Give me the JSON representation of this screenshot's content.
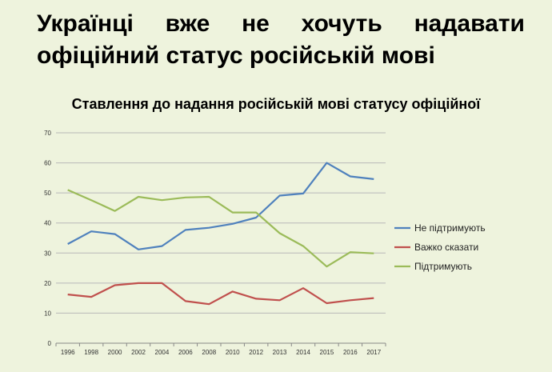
{
  "slide": {
    "title_words": [
      "Українці",
      "вже",
      "не",
      "хочуть",
      "надавати"
    ],
    "title_line2": "офіційний статус російській мові"
  },
  "chart_data": {
    "type": "line",
    "title": "Ставлення до надання російській мові статусу офіційної",
    "categories": [
      "1996",
      "1998",
      "2000",
      "2002",
      "2004",
      "2006",
      "2008",
      "2010",
      "2012",
      "2013",
      "2014",
      "2015",
      "2016",
      "2017"
    ],
    "yticks": [
      0,
      10,
      20,
      30,
      40,
      50,
      60,
      70
    ],
    "ylim": [
      0,
      70
    ],
    "grid": true,
    "legend_position": "right",
    "series": [
      {
        "name": "Не підтримують",
        "color": "#4f81bd",
        "values": [
          33,
          37.2,
          36.3,
          31.2,
          32.3,
          37.7,
          38.4,
          39.7,
          41.8,
          49.1,
          49.8,
          60,
          55.5,
          54.6
        ]
      },
      {
        "name": "Важко сказати",
        "color": "#c0504d",
        "values": [
          16.2,
          15.4,
          19.3,
          20,
          20,
          14,
          13,
          17.2,
          14.8,
          14.3,
          18.3,
          13.3,
          14.3,
          15
        ]
      },
      {
        "name": "Підтримують",
        "color": "#9bbb59",
        "values": [
          51,
          47.6,
          44,
          48.7,
          47.6,
          48.5,
          48.7,
          43.5,
          43.5,
          36.6,
          32.3,
          25.5,
          30.3,
          29.9
        ]
      }
    ]
  }
}
